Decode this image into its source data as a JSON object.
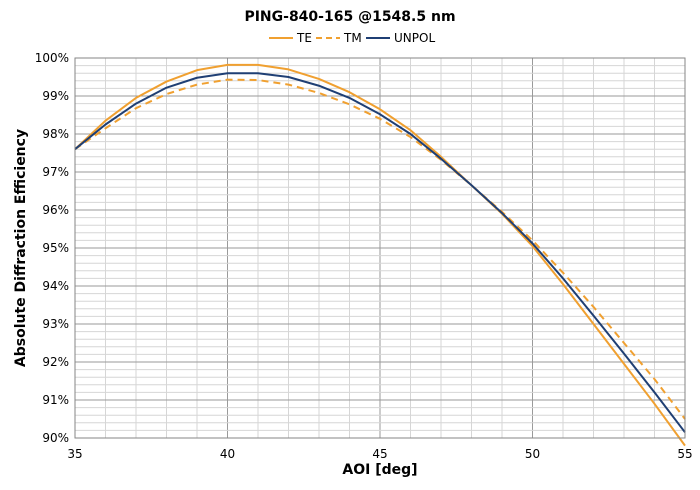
{
  "chart_data": {
    "type": "line",
    "title": "PING-840-165 @1548.5 nm",
    "xlabel": "AOI [deg]",
    "ylabel": "Absolute Diffraction Efficiency",
    "xlim": [
      35,
      55
    ],
    "ylim": [
      90,
      100
    ],
    "x_ticks": [
      35,
      40,
      45,
      50,
      55
    ],
    "x_tick_labels": [
      "35",
      "40",
      "45",
      "50",
      "55"
    ],
    "y_ticks": [
      90,
      91,
      92,
      93,
      94,
      95,
      96,
      97,
      98,
      99,
      100
    ],
    "y_tick_labels": [
      "90%",
      "91%",
      "92%",
      "93%",
      "94%",
      "95%",
      "96%",
      "97%",
      "98%",
      "99%",
      "100%"
    ],
    "grid": true,
    "legend_position": "top",
    "x": [
      35,
      36,
      37,
      38,
      39,
      40,
      41,
      42,
      43,
      44,
      45,
      46,
      47,
      48,
      49,
      50,
      51,
      52,
      53,
      54,
      55
    ],
    "series": [
      {
        "name": "TE",
        "color": "#f0a030",
        "style": "solid",
        "values": [
          97.6,
          98.35,
          98.95,
          99.38,
          99.68,
          99.82,
          99.82,
          99.7,
          99.45,
          99.1,
          98.65,
          98.1,
          97.4,
          96.65,
          95.9,
          95.05,
          94.05,
          93.0,
          91.95,
          90.9,
          89.8
        ]
      },
      {
        "name": "TM",
        "color": "#f0a030",
        "style": "dashed",
        "values": [
          97.6,
          98.15,
          98.68,
          99.05,
          99.3,
          99.43,
          99.42,
          99.3,
          99.08,
          98.78,
          98.4,
          97.92,
          97.32,
          96.65,
          95.95,
          95.2,
          94.35,
          93.45,
          92.5,
          91.55,
          90.5
        ]
      },
      {
        "name": "UNPOL",
        "color": "#1f3f74",
        "style": "solid",
        "values": [
          97.6,
          98.25,
          98.8,
          99.22,
          99.48,
          99.6,
          99.6,
          99.5,
          99.27,
          98.95,
          98.52,
          98.0,
          97.35,
          96.65,
          95.92,
          95.12,
          94.2,
          93.22,
          92.22,
          91.2,
          90.15
        ]
      }
    ]
  }
}
